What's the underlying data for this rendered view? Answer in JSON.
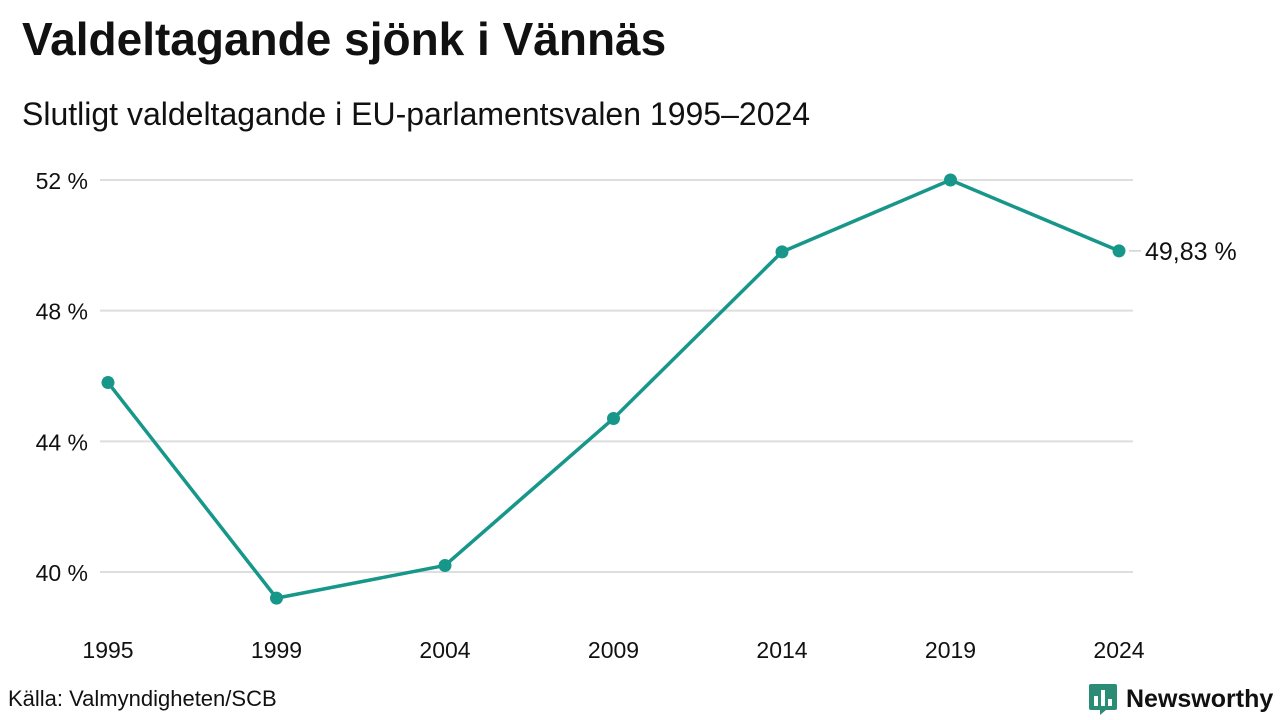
{
  "header": {
    "title": "Valdeltagande sjönk i Vännäs",
    "subtitle": "Slutligt valdeltagande i EU-parlamentsvalen 1995–2024"
  },
  "footer": {
    "source": "Källa: Valmyndigheten/SCB",
    "brand": "Newsworthy"
  },
  "colors": {
    "line": "#17968a",
    "grid": "#dedede",
    "text": "#111111",
    "brand": "#2a8c74"
  },
  "icons": {
    "brand_logo": "bar-chart-speech-bubble-icon"
  },
  "chart_data": {
    "type": "line",
    "title": "Valdeltagande sjönk i Vännäs",
    "subtitle": "Slutligt valdeltagande i EU-parlamentsvalen 1995–2024",
    "xlabel": "",
    "ylabel": "",
    "x": [
      "1995",
      "1999",
      "2004",
      "2009",
      "2014",
      "2019",
      "2024"
    ],
    "series": [
      {
        "values": [
          45.8,
          39.2,
          40.2,
          44.7,
          49.8,
          52.0,
          49.83
        ]
      }
    ],
    "ylim": [
      38.4,
      53
    ],
    "yticks": [
      40,
      44,
      48,
      52
    ],
    "ytick_labels": [
      "40 %",
      "44 %",
      "48 %",
      "52 %"
    ],
    "end_label": "49,83 %",
    "grid": "horizontal",
    "legend": "none"
  }
}
